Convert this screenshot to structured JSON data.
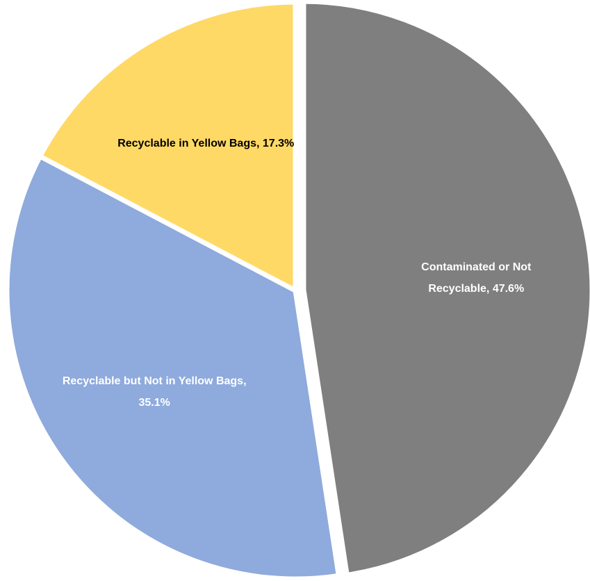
{
  "chart_data": {
    "type": "pie",
    "start_angle_deg": 0,
    "direction": "clockwise",
    "slices": [
      {
        "name": "Contaminated or Not Recyclable",
        "value": 47.6,
        "label_lines": [
          "Contaminated or Not",
          "Recyclable, 47.6%"
        ],
        "color": "#7f7f7f",
        "label_color": "#ffffff",
        "exploded": true
      },
      {
        "name": "Recyclable but Not in Yellow Bags",
        "value": 35.1,
        "label_lines": [
          "Recyclable but Not in Yellow Bags,",
          "35.1%"
        ],
        "color": "#8faadc",
        "label_color": "#ffffff",
        "exploded": false
      },
      {
        "name": "Recyclable in Yellow Bags",
        "value": 17.3,
        "label_lines": [
          "Recyclable in Yellow Bags, 17.3%"
        ],
        "color": "#ffd966",
        "label_color": "#000000",
        "exploded": false
      }
    ]
  }
}
